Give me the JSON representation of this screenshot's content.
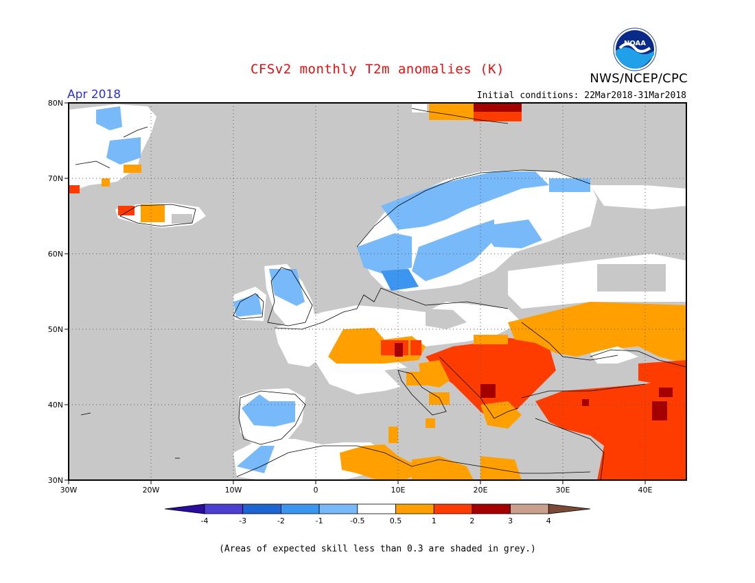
{
  "header": {
    "title": "CFSv2 monthly T2m anomalies (K)",
    "agency": "NWS/NCEP/CPC",
    "period": "Apr 2018",
    "initial_conditions": "Initial conditions: 22Mar2018-31Mar2018",
    "logo_text": "NOAA"
  },
  "map": {
    "region": "Europe",
    "lon_range": [
      -30,
      45
    ],
    "lat_range": [
      30,
      80
    ],
    "lon_ticks": [
      "30W",
      "20W",
      "10W",
      "0",
      "10E",
      "20E",
      "30E",
      "40E"
    ],
    "lat_ticks": [
      "30N",
      "40N",
      "50N",
      "60N",
      "70N",
      "80N"
    ],
    "grid": "dotted",
    "low_skill_color": "#c8c8c8"
  },
  "legend": {
    "labels": [
      "-4",
      "-3",
      "-2",
      "-1",
      "-0.5",
      "0.5",
      "1",
      "2",
      "3",
      "4"
    ],
    "colors": [
      "#2a0c9e",
      "#4a3fd0",
      "#1e64d2",
      "#3c96f0",
      "#78b9fa",
      "#ffffff",
      "#ffa000",
      "#ff3c00",
      "#a50000",
      "#c8a08c",
      "#7a4a36"
    ]
  },
  "footnote": "(Areas of expected skill less than 0.3 are shaded in grey.)"
}
